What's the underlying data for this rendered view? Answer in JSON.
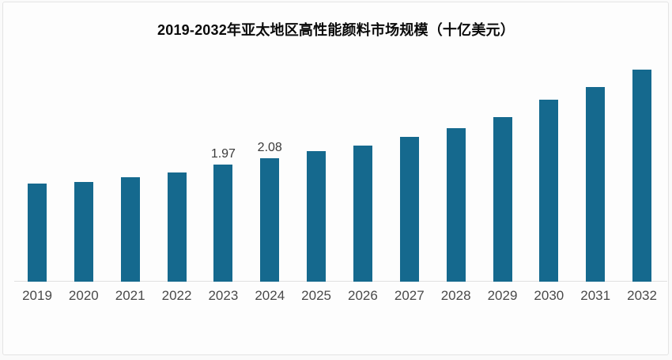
{
  "chart_data": {
    "type": "bar",
    "title": "2019-2032年亚太地区高性能颜料市场规模（十亿美元）",
    "categories": [
      "2019",
      "2020",
      "2021",
      "2022",
      "2023",
      "2024",
      "2025",
      "2026",
      "2027",
      "2028",
      "2029",
      "2030",
      "2031",
      "2032"
    ],
    "values": [
      1.65,
      1.67,
      1.75,
      1.83,
      1.97,
      2.08,
      2.19,
      2.29,
      2.43,
      2.58,
      2.77,
      3.06,
      3.27,
      3.56
    ],
    "data_labels": {
      "2023": "1.97",
      "2024": "2.08"
    },
    "xlabel": "",
    "ylabel": "",
    "ylim": [
      0,
      4.4
    ],
    "grid": false,
    "legend": false,
    "bar_color": "#15698e",
    "axis_line_color": "#e0e0e0",
    "tick_label_color": "#4a4a4a",
    "value_label_color": "#3a3a3a",
    "title_color": "#0a0a0a"
  }
}
